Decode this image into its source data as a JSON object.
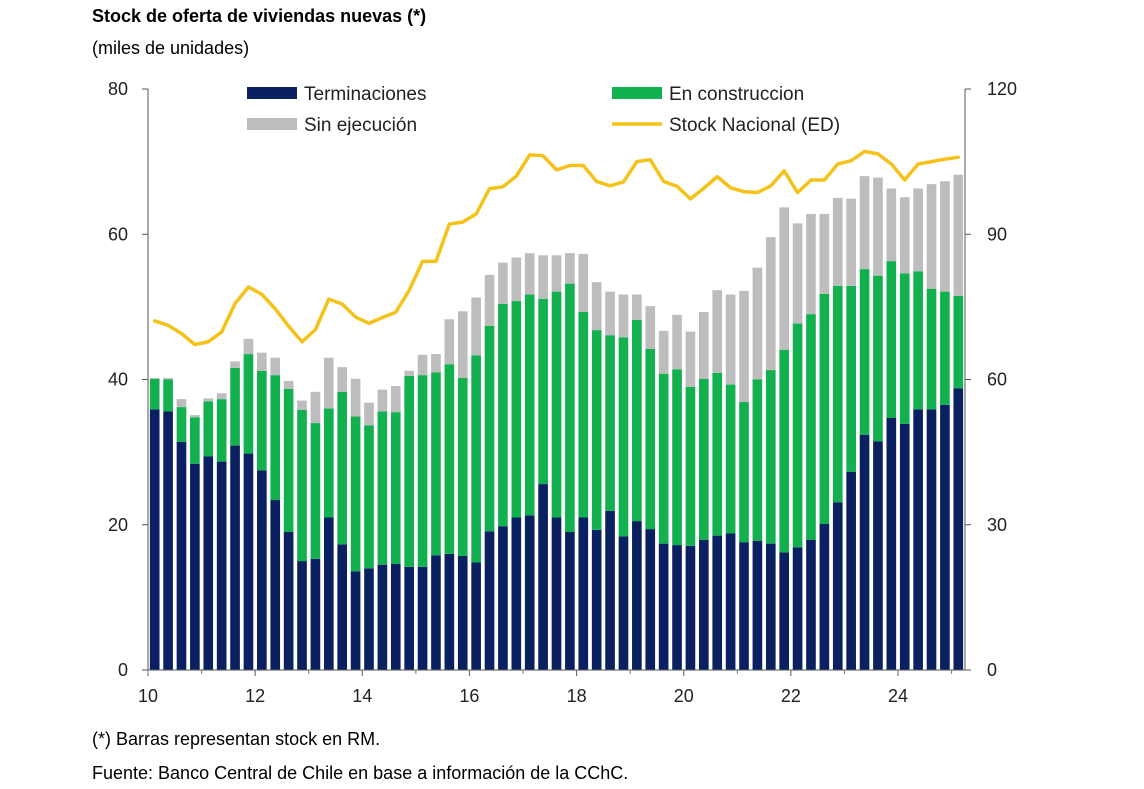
{
  "title": "Stock de oferta de viviendas nuevas (*)",
  "subtitle": "(miles de unidades)",
  "note": "(*) Barras representan stock en RM.",
  "source": "Fuente: Banco Central de Chile en base a información de la CChC.",
  "chart_data": {
    "type": "bar",
    "stacked": true,
    "x_label_every": 2,
    "x_tick_labels": [
      "10",
      "12",
      "14",
      "16",
      "18",
      "20",
      "22",
      "24"
    ],
    "x_tick_index": [
      0,
      8,
      16,
      24,
      32,
      40,
      48,
      56
    ],
    "x_label_start": 0,
    "y_left": {
      "min": 0,
      "max": 80,
      "ticks": [
        0,
        20,
        40,
        60,
        80
      ]
    },
    "y_right": {
      "min": 0,
      "max": 120,
      "ticks": [
        0,
        30,
        60,
        90,
        120
      ]
    },
    "colors": {
      "Terminaciones": "#0a2060",
      "En construccion": "#12b04f",
      "Sin ejecución": "#bdbdbd",
      "Stock Nacional (ED)": "#f5c21a"
    },
    "legend_position": "top",
    "grid": false,
    "series": [
      {
        "name": "Terminaciones",
        "values": [
          35.9,
          35.6,
          31.4,
          28.4,
          29.4,
          28.7,
          30.9,
          29.8,
          27.5,
          23.4,
          19.0,
          15.0,
          15.3,
          21.0,
          17.3,
          13.6,
          14.0,
          14.5,
          14.6,
          14.2,
          14.2,
          15.8,
          16.0,
          15.7,
          14.8,
          19.1,
          19.8,
          21.0,
          21.3,
          25.6,
          21.0,
          19.0,
          21.0,
          19.3,
          21.9,
          18.4,
          20.5,
          19.4,
          17.4,
          17.2,
          17.1,
          17.9,
          18.5,
          18.8,
          17.6,
          17.8,
          17.4,
          16.2,
          16.9,
          17.9,
          20.1,
          23.1,
          27.3,
          32.4,
          31.5,
          34.7,
          33.9,
          35.9,
          35.9,
          36.5,
          38.8
        ]
      },
      {
        "name": "En construccion",
        "values": [
          4.2,
          4.4,
          4.8,
          6.4,
          7.6,
          8.6,
          10.7,
          13.7,
          13.7,
          17.2,
          19.7,
          20.8,
          18.7,
          15.0,
          21.0,
          21.3,
          19.7,
          21.1,
          20.9,
          26.3,
          26.4,
          25.2,
          26.1,
          24.5,
          28.5,
          28.3,
          30.6,
          29.8,
          30.4,
          25.5,
          31.1,
          34.2,
          28.3,
          27.5,
          24.2,
          27.4,
          27.7,
          24.8,
          23.4,
          24.2,
          21.9,
          22.2,
          22.4,
          20.5,
          19.3,
          22.2,
          23.9,
          27.9,
          30.8,
          31.1,
          31.7,
          29.8,
          25.6,
          22.8,
          22.8,
          21.6,
          20.7,
          19.0,
          16.6,
          15.6,
          12.7
        ]
      },
      {
        "name": "Sin ejecución",
        "values": [
          0.1,
          0.2,
          1.1,
          0.3,
          0.4,
          0.8,
          0.9,
          2.1,
          2.5,
          2.4,
          1.1,
          1.3,
          4.3,
          7.0,
          3.4,
          5.2,
          3.1,
          3.0,
          3.6,
          0.7,
          2.8,
          2.5,
          6.2,
          9.2,
          8.0,
          7.0,
          5.7,
          6.0,
          5.7,
          6.0,
          5.0,
          4.2,
          8.0,
          6.6,
          6.0,
          5.9,
          3.5,
          5.9,
          5.9,
          7.5,
          7.6,
          9.2,
          11.4,
          12.4,
          15.3,
          15.4,
          18.3,
          19.6,
          13.8,
          13.8,
          11.0,
          12.1,
          12.0,
          12.8,
          13.5,
          10.0,
          10.5,
          11.4,
          14.4,
          15.2,
          16.7
        ]
      },
      {
        "name": "Stock Nacional (ED)",
        "line": true,
        "values": [
          72.1,
          71.2,
          69.5,
          67.2,
          67.8,
          69.8,
          75.7,
          79.1,
          77.6,
          74.6,
          71.0,
          67.8,
          70.3,
          76.6,
          75.6,
          72.9,
          71.6,
          72.8,
          73.9,
          78.4,
          84.4,
          84.4,
          92.1,
          92.5,
          94.2,
          99.4,
          99.8,
          102.0,
          106.4,
          106.2,
          103.3,
          104.2,
          104.2,
          100.9,
          100.0,
          100.8,
          105.0,
          105.4,
          100.9,
          99.9,
          97.3,
          99.5,
          101.9,
          99.6,
          98.8,
          98.6,
          100.0,
          103.1,
          98.6,
          101.2,
          101.2,
          104.5,
          105.2,
          107.1,
          106.6,
          104.5,
          101.2,
          104.5,
          105.0,
          105.5,
          105.9
        ]
      }
    ]
  }
}
